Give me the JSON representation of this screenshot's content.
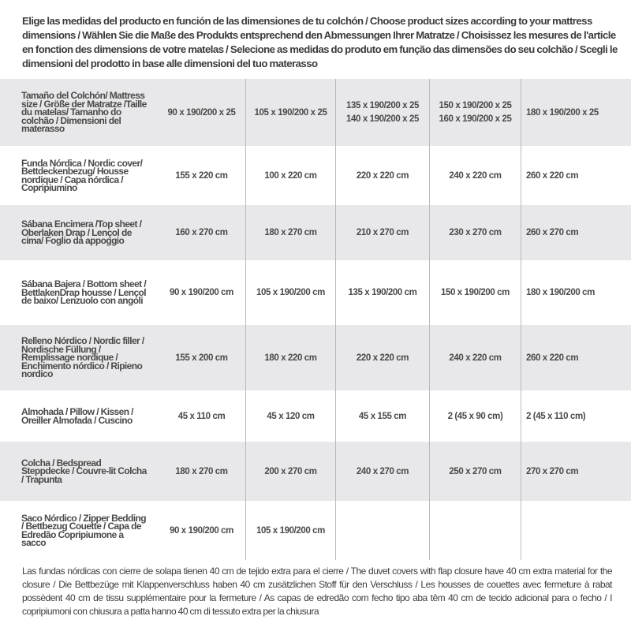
{
  "intro": "Elige las medidas del producto en función de las dimensiones de tu colchón / Choose product sizes according to your mattress dimensions / Wählen Sie die Maße des Produkts entsprechend den Abmessungen Ihrer Matratze / Choisissez les mesures de l'article en fonction des dimensions de votre matelas / Selecione as medidas do produto em função das dimensões do seu colchão / Scegli le dimensioni del prodotto in base alle dimensioni del tuo materasso",
  "table": {
    "header": {
      "label": "Tamaño del Colchón/ Mattress size / Größe der Matratze /Taille du matelas/ Tamanho do colchão / Dimensioni del materasso",
      "cols": [
        [
          "90 x 190/200 x 25"
        ],
        [
          "105 x 190/200 x 25"
        ],
        [
          "135 x 190/200 x 25",
          "140 x 190/200 x 25"
        ],
        [
          "150 x 190/200 x 25",
          "160 x 190/200 x 25"
        ],
        [
          "180 x 190/200 x 25"
        ]
      ]
    },
    "rows": [
      {
        "label": "Funda Nórdica /  Nordic cover/ Bettdeckenbezug/ Housse nordique  / Capa nórdica / Copripiumino",
        "values": [
          "155 x 220 cm",
          "100 x 220 cm",
          "220 x 220 cm",
          "240 x 220 cm",
          "260 x 220 cm"
        ]
      },
      {
        "label": "Sábana Encimera /Top sheet / Oberlaken Drap / Lençol de cima/ Foglio da appoggio",
        "values": [
          "160 x 270 cm",
          "180 x 270 cm",
          "210 x 270 cm",
          "230 x 270 cm",
          "260 x 270 cm"
        ]
      },
      {
        "label": "Sábana Bajera / Bottom sheet / BettlakenDrap housse / Lençol de baixo/ Lenzuolo con angoli",
        "values": [
          "90 x 190/200 cm",
          "105 x 190/200 cm",
          "135 x 190/200 cm",
          "150 x 190/200 cm",
          "180 x 190/200 cm"
        ]
      },
      {
        "label": "Relleno Nórdico / Nordic filler / Nordische Füllung / Remplissage nordique / Enchimento nórdico / Ripieno nordico",
        "values": [
          "155 x 200 cm",
          "180 x 220 cm",
          "220 x 220 cm",
          "240 x 220 cm",
          "260 x 220 cm"
        ]
      },
      {
        "label": "Almohada  / Pillow / Kissen / Oreiller Almofada / Cuscino",
        "values": [
          "45 x 110 cm",
          "45 x 120 cm",
          "45 x 155 cm",
          "2 (45 x 90 cm)",
          "2 (45 x 110 cm)"
        ]
      },
      {
        "label": "Colcha / Bedspread Steppdecke / Couvre-lit Colcha / Trapunta",
        "values": [
          "180 x 270 cm",
          "200 x 270 cm",
          "240 x 270 cm",
          "250 x 270 cm",
          "270 x 270 cm"
        ]
      },
      {
        "label": "Saco Nórdico / Zipper Bedding / Bettbezug Couette  / Capa de Edredão Copripiumone a sacco",
        "values": [
          "90 x 190/200 cm",
          "105 x 190/200 cm",
          "",
          "",
          ""
        ]
      }
    ]
  },
  "footer": "Las fundas nórdicas con cierre de solapa tienen 40 cm de tejido extra para el cierre  / The duvet covers with flap closure have 40 cm extra material for the closure / Die Bettbezüge mit Klappenverschluss haben 40 cm zusätzlichen Stoff für den Verschluss / Les housses de couettes avec fermeture à rabat possèdent 40 cm de tissu supplémentaire pour la fermeture / As capas de edredão com fecho tipo aba têm 40 cm de tecido adicional para o fecho / I copripiumoni con chiusura a patta hanno 40 cm di tessuto extra per la chiusura",
  "colors": {
    "row_gray": "#e8e8ea",
    "text": "#3a3a3a",
    "divider": "#b9b9bb"
  }
}
